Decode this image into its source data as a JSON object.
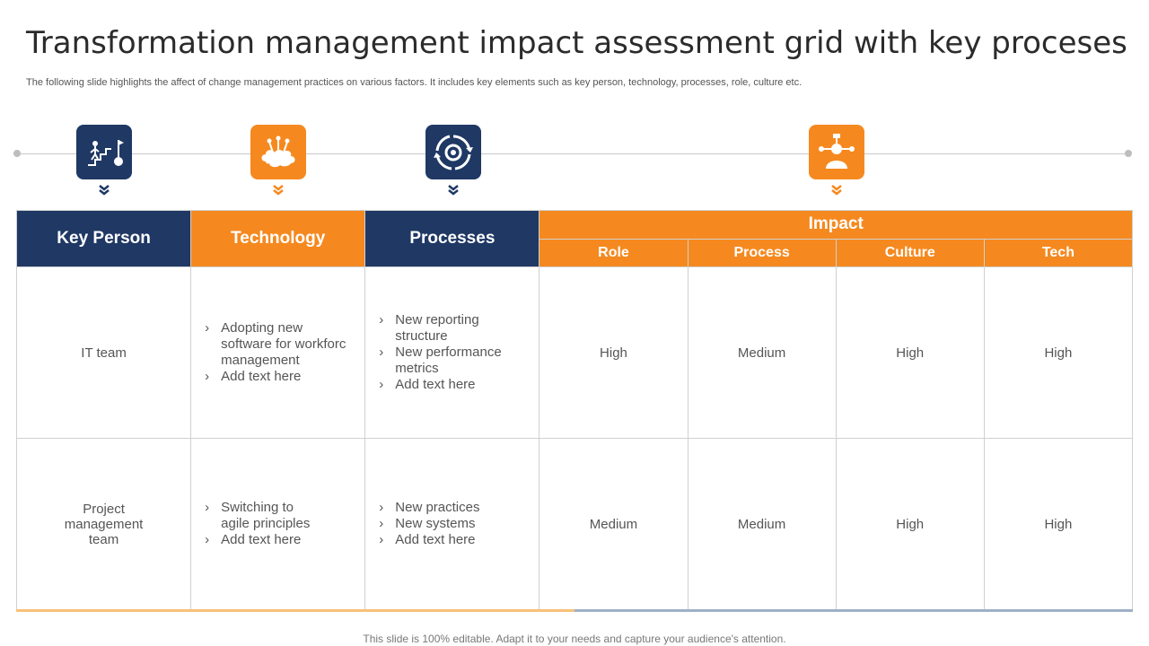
{
  "slide": {
    "title": "Transformation management impact assessment grid with key proceses",
    "subtitle": "The following slide highlights the affect of change management practices on various factors. It includes key elements such as key person, technology, processes, role, culture etc.",
    "footer": "This slide is 100% editable. Adapt it to your needs and capture your audience's attention."
  },
  "icons": [
    "stairs-goal-icon",
    "brain-network-icon",
    "cycle-gear-icon",
    "person-network-icon"
  ],
  "colors": {
    "navy": "#1f3864",
    "orange": "#f5891f"
  },
  "table": {
    "headers": {
      "key_person": "Key Person",
      "technology": "Technology",
      "processes": "Processes",
      "impact": "Impact",
      "role": "Role",
      "process": "Process",
      "culture": "Culture",
      "tech": "Tech"
    },
    "rows": [
      {
        "key_person": "IT team",
        "technology": [
          "Adopting new software for workforc management",
          "Add text here"
        ],
        "processes": [
          "New reporting structure",
          "New performance metrics",
          "Add text here"
        ],
        "role": "High",
        "process": "Medium",
        "culture": "High",
        "tech": "High"
      },
      {
        "key_person": "Project management team",
        "technology": [
          "Switching to agile principles",
          "Add text here"
        ],
        "processes": [
          "New practices",
          "New systems",
          "Add text here"
        ],
        "role": "Medium",
        "process": "Medium",
        "culture": "High",
        "tech": "High"
      }
    ]
  }
}
